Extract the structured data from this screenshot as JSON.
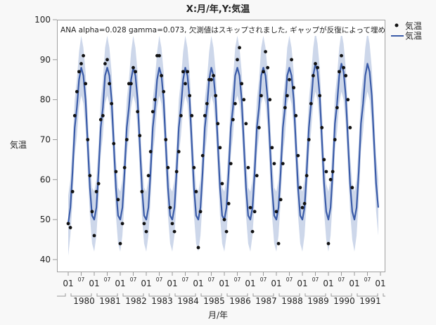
{
  "chart_data": {
    "type": "line",
    "title": "X:月/年,Y:気温",
    "annotation": "ANA alpha=0.028 gamma=0.073, 欠測値はスキップされました, ギャップが反復によって埋め",
    "xlabel": "月/年",
    "ylabel": "気温",
    "ylim": [
      40,
      100
    ],
    "yticks": [
      40,
      50,
      60,
      70,
      80,
      90,
      100
    ],
    "xstart": "1980-01",
    "xend": "1992-01",
    "x_month_tick_labels": [
      "01",
      "07"
    ],
    "x_year_labels": [
      "1980",
      "1981",
      "1982",
      "1983",
      "1984",
      "1985",
      "1986",
      "1987",
      "1988",
      "1989",
      "1990",
      "1991"
    ],
    "grid": false,
    "legend_position": "right",
    "legend": [
      {
        "name": "気温",
        "marker": "dot"
      },
      {
        "name": "気温",
        "marker": "line"
      }
    ],
    "colors": {
      "points": "#111111",
      "line": "#3a5ba8",
      "band": "#cdd7ea"
    },
    "observed": {
      "name": "気温",
      "start": "1980-01",
      "values": [
        49,
        48,
        57,
        76,
        82,
        87,
        89,
        91,
        84,
        70,
        61,
        52,
        46,
        57,
        59,
        75,
        76,
        89,
        90,
        84,
        79,
        69,
        62,
        55,
        44,
        49,
        63,
        70,
        84,
        84,
        88,
        87,
        77,
        71,
        57,
        49,
        47,
        61,
        67,
        77,
        80,
        91,
        91,
        86,
        82,
        70,
        63,
        53,
        49,
        47,
        62,
        67,
        76,
        87,
        84,
        87,
        81,
        76,
        63,
        57,
        43,
        52,
        66,
        76,
        79,
        85,
        85,
        86,
        81,
        74,
        68,
        59,
        50,
        47,
        54,
        64,
        75,
        79,
        90,
        93,
        84,
        80,
        74,
        63,
        53,
        47,
        52,
        61,
        73,
        81,
        87,
        92,
        88,
        80,
        68,
        64,
        52,
        44,
        55,
        64,
        78,
        81,
        85,
        90,
        83,
        76,
        66,
        58,
        53,
        54,
        61,
        70,
        79,
        86,
        89,
        88,
        81,
        73,
        65,
        62,
        44,
        60,
        62,
        70,
        78,
        87,
        91,
        88,
        86,
        80,
        73,
        58
      ]
    },
    "predicted": {
      "name": "気温",
      "start": "1980-01",
      "values": [
        49,
        53,
        62,
        73,
        78,
        85,
        88,
        86,
        80,
        69,
        58,
        51,
        50,
        53,
        62,
        73,
        78,
        86,
        88,
        86,
        80,
        69,
        58,
        51,
        50,
        53,
        62,
        73,
        78,
        85,
        88,
        86,
        80,
        69,
        58,
        51,
        50,
        53,
        62,
        73,
        78,
        85,
        88,
        86,
        80,
        69,
        58,
        51,
        50,
        53,
        62,
        73,
        78,
        85,
        88,
        86,
        80,
        69,
        58,
        51,
        50,
        53,
        62,
        73,
        78,
        85,
        88,
        86,
        80,
        69,
        58,
        51,
        50,
        53,
        62,
        73,
        78,
        86,
        88,
        86,
        80,
        69,
        58,
        51,
        50,
        53,
        62,
        73,
        78,
        86,
        88,
        86,
        80,
        69,
        58,
        51,
        50,
        53,
        62,
        73,
        78,
        86,
        88,
        86,
        80,
        69,
        58,
        51,
        50,
        53,
        62,
        73,
        79,
        86,
        89,
        87,
        81,
        70,
        59,
        52,
        50,
        53,
        62,
        74,
        79,
        86,
        89,
        87,
        81,
        70,
        59,
        52,
        50,
        53,
        62,
        74,
        79,
        86,
        89,
        87,
        81,
        70,
        59,
        53
      ],
      "interval_halfwidth": 7
    }
  }
}
